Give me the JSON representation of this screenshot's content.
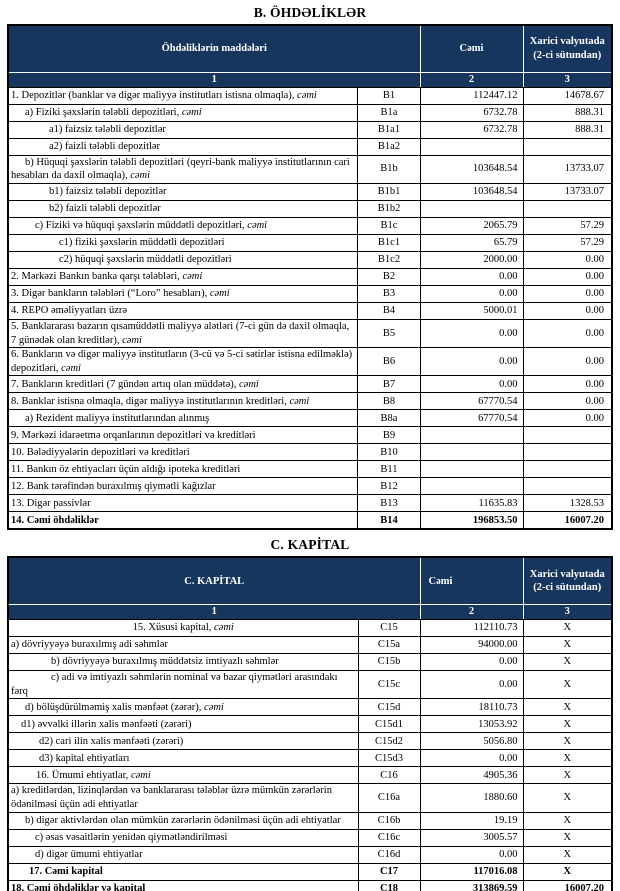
{
  "colors": {
    "header_bg": "#17365d",
    "header_text": "#ffffff",
    "border": "#000000"
  },
  "tables": [
    {
      "name": "liabilities",
      "title": "B. ÖHDƏLİKLƏR",
      "header": {
        "items_label": "Öhdəliklərin maddələri",
        "total_label": "Cəmi",
        "foreign_label": "Xarici valyutada (2-ci sütundan)",
        "col_numbers": [
          "1",
          "2",
          "3"
        ],
        "total_align": "center"
      },
      "rows": [
        {
          "label": "1. Depozitlər (banklar və digər maliyyə institutları istisna olmaqla), ",
          "em": "cəmi",
          "code": "B1",
          "total": "112447.12",
          "foreign": "14678.67",
          "indent": 0,
          "bold": false,
          "center": false
        },
        {
          "label": "a)  Fiziki şəxslərin tələbli depozitləri, ",
          "em": "cəmi",
          "code": "B1a",
          "total": "6732.78",
          "foreign": "888.31",
          "indent": 14,
          "bold": false,
          "center": false
        },
        {
          "label": "a1) faizsiz tələbli depozitlər",
          "em": "",
          "code": "B1a1",
          "total": "6732.78",
          "foreign": "888.31",
          "indent": 38,
          "bold": false,
          "center": false
        },
        {
          "label": "a2) faizli tələbli depozitlər",
          "em": "",
          "code": "B1a2",
          "total": "",
          "foreign": "",
          "indent": 38,
          "bold": false,
          "center": false
        },
        {
          "label": "b) Hüquqi şəxslərin tələbli depozitləri (qeyri-bank maliyyə institutlarının cari hesabları da daxil olmaqla), ",
          "em": "cəmi",
          "code": "B1b",
          "total": "103648.54",
          "foreign": "13733.07",
          "indent": 14,
          "bold": false,
          "center": false
        },
        {
          "label": "b1) faizsiz tələbli depozitlər",
          "em": "",
          "code": "B1b1",
          "total": "103648.54",
          "foreign": "13733.07",
          "indent": 38,
          "bold": false,
          "center": false
        },
        {
          "label": "b2) faizli tələbli depozitlər",
          "em": "",
          "code": "B1b2",
          "total": "",
          "foreign": "",
          "indent": 38,
          "bold": false,
          "center": false
        },
        {
          "label": "c) Fiziki və hüquqi şəxslərin müddətli depozitləri, ",
          "em": "cəmi",
          "code": "B1c",
          "total": "2065.79",
          "foreign": "57.29",
          "indent": 24,
          "bold": false,
          "center": false
        },
        {
          "label": "c1) fiziki şəxslərin müddətli depozitləri",
          "em": "",
          "code": "B1c1",
          "total": "65.79",
          "foreign": "57.29",
          "indent": 48,
          "bold": false,
          "center": false
        },
        {
          "label": "c2) hüquqi şəxslərin müddətli depozitləri",
          "em": "",
          "code": "B1c2",
          "total": "2000.00",
          "foreign": "0.00",
          "indent": 48,
          "bold": false,
          "center": false
        },
        {
          "label": "2. Mərkəzi Bankın banka qarşı tələbləri, ",
          "em": "cəmi",
          "code": "B2",
          "total": "0.00",
          "foreign": "0.00",
          "indent": 0,
          "bold": false,
          "center": false
        },
        {
          "label": "3. Digər bankların tələbləri (“Loro” hesabları), ",
          "em": "cəmi",
          "code": "B3",
          "total": "0.00",
          "foreign": "0.00",
          "indent": 0,
          "bold": false,
          "center": false
        },
        {
          "label": "4. REPO əməliyyatları  üzrə",
          "em": "",
          "code": "B4",
          "total": "5000.01",
          "foreign": "0.00",
          "indent": 0,
          "bold": false,
          "center": false
        },
        {
          "label": "5. Banklararası bazarın qısamüddətli maliyyə alətləri (7-ci gün də daxil olmaqla, 7 günədək olan kreditlər), ",
          "em": "cəmi",
          "code": "B5",
          "total": "0.00",
          "foreign": "0.00",
          "indent": 0,
          "bold": false,
          "center": false
        },
        {
          "label": "6. Bankların və digər maliyyə institutların (3-cü və 5-ci sətirlər istisna edilməklə) depozitləri, ",
          "em": "cəmi",
          "code": "B6",
          "total": "0.00",
          "foreign": "0.00",
          "indent": 0,
          "bold": false,
          "center": false
        },
        {
          "label": "7. Bankların kreditləri (7 gündən artıq olan müddətə), ",
          "em": "cəmi",
          "code": "B7",
          "total": "0.00",
          "foreign": "0.00",
          "indent": 0,
          "bold": false,
          "center": false
        },
        {
          "label": "8. Banklar istisna olmaqla, digər maliyyə institutlarının kreditləri, ",
          "em": "cəmi",
          "code": "B8",
          "total": "67770.54",
          "foreign": "0.00",
          "indent": 0,
          "bold": false,
          "center": false
        },
        {
          "label": "a) Rezident maliyyə institutlarından alınmış",
          "em": "",
          "code": "B8a",
          "total": "67770.54",
          "foreign": "0.00",
          "indent": 14,
          "bold": false,
          "center": false
        },
        {
          "label": "9. Mərkəzi idarəetmə orqanlarının depozitləri və kreditləri",
          "em": "",
          "code": "B9",
          "total": "",
          "foreign": "",
          "indent": 0,
          "bold": false,
          "center": false
        },
        {
          "label": "10. Bələdiyyələrin depozitləri və kreditləri",
          "em": "",
          "code": "B10",
          "total": "",
          "foreign": "",
          "indent": 0,
          "bold": false,
          "center": false
        },
        {
          "label": "11. Bankın öz ehtiyacları üçün aldığı ipoteka kreditləri",
          "em": "",
          "code": "B11",
          "total": "",
          "foreign": "",
          "indent": 0,
          "bold": false,
          "center": false
        },
        {
          "label": "12. Bank tərəfindən buraxılmış qiymətli kağızlar",
          "em": "",
          "code": "B12",
          "total": "",
          "foreign": "",
          "indent": 0,
          "bold": false,
          "center": false
        },
        {
          "label": "13. Digər passivlər",
          "em": "",
          "code": "B13",
          "total": "11635.83",
          "foreign": "1328.53",
          "indent": 0,
          "bold": false,
          "center": false
        },
        {
          "label": "14. Cəmi öhdəliklər",
          "em": "",
          "code": "B14",
          "total": "196853.50",
          "foreign": "16007.20",
          "indent": 0,
          "bold": true,
          "center": false
        }
      ]
    },
    {
      "name": "capital",
      "title": "C. KAPİTAL",
      "header": {
        "items_label": "C. KAPİTAL",
        "total_label": "Cəmi",
        "foreign_label": "Xarici valyutada (2-ci sütundan)",
        "col_numbers": [
          "1",
          "2",
          "3"
        ],
        "total_align": "left"
      },
      "rows": [
        {
          "label": "15. Xüsusi kapital, ",
          "em": "cəmi",
          "code": "C15",
          "total": "112110.73",
          "foreign": "X",
          "indent": 0,
          "bold": false,
          "center": true
        },
        {
          "label": "a) dövriyyəyə buraxılmış adi səhmlər",
          "em": "",
          "code": "C15a",
          "total": "94000.00",
          "foreign": "X",
          "indent": 0,
          "bold": false,
          "center": false
        },
        {
          "label": "b) dövriyyəyə buraxılmış müddətsiz imtiyazlı səhmlər",
          "em": "",
          "code": "C15b",
          "total": "0.00",
          "foreign": "X",
          "indent": 40,
          "bold": false,
          "center": false
        },
        {
          "label": "c) adi və imtiyazlı səhmlərin nominal və bazar qiymətləri arasındakı fərq",
          "em": "",
          "code": "C15c",
          "total": "0.00",
          "foreign": "X",
          "indent": 40,
          "bold": false,
          "center": false
        },
        {
          "label": "d) bölüşdürülməmiş xalis mənfəət (zərər), ",
          "em": "cəmi",
          "code": "C15d",
          "total": "18110.73",
          "foreign": "X",
          "indent": 14,
          "bold": false,
          "center": false
        },
        {
          "label": "d1) əvvəlki illərin xalis mənfəəti (zərəri)",
          "em": "",
          "code": "C15d1",
          "total": "13053.92",
          "foreign": "X",
          "indent": 10,
          "bold": false,
          "center": false
        },
        {
          "label": "d2) cari ilin xalis mənfəəti (zərəri)",
          "em": "",
          "code": "C15d2",
          "total": "5056.80",
          "foreign": "X",
          "indent": 28,
          "bold": false,
          "center": false
        },
        {
          "label": "d3) kapital ehtiyatları",
          "em": "",
          "code": "C15d3",
          "total": "0.00",
          "foreign": "X",
          "indent": 28,
          "bold": false,
          "center": false
        },
        {
          "label": "16. Ümumi ehtiyatlar, ",
          "em": "cəmi",
          "code": "C16",
          "total": "4905.36",
          "foreign": "X",
          "indent": 25,
          "bold": false,
          "center": false
        },
        {
          "label": "a) kreditlərdən, lizinqlərdən və banklararası  tələblər üzrə mümkün zərərlərin ödənilməsi üçün adi ehtiyatlar",
          "em": "",
          "code": "C16a",
          "total": "1880.60",
          "foreign": "X",
          "indent": 0,
          "bold": false,
          "center": false
        },
        {
          "label": "b) digər aktivlərdən olan mümkün zərərlərin ödənilməsi üçün adi ehtiyatlar",
          "em": "",
          "code": "C16b",
          "total": "19.19",
          "foreign": "X",
          "indent": 14,
          "bold": false,
          "center": false
        },
        {
          "label": "c) əsas vəsaitlərin yenidən qiymətləndirilməsi",
          "em": "",
          "code": "C16c",
          "total": "3005.57",
          "foreign": "X",
          "indent": 24,
          "bold": false,
          "center": false
        },
        {
          "label": "d) digər ümumi ehtiyatlar",
          "em": "",
          "code": "C16d",
          "total": "0.00",
          "foreign": "X",
          "indent": 24,
          "bold": false,
          "center": false
        },
        {
          "label": "17. Cəmi kapital",
          "em": "",
          "code": "C17",
          "total": "117016.08",
          "foreign": "X",
          "indent": 18,
          "bold": true,
          "center": false
        },
        {
          "label": "18. Cəmi öhdəliklər və kapital",
          "em": "",
          "code": "C18",
          "total": "313869.59",
          "foreign": "16007.20",
          "indent": 0,
          "bold": true,
          "center": false
        }
      ]
    }
  ]
}
